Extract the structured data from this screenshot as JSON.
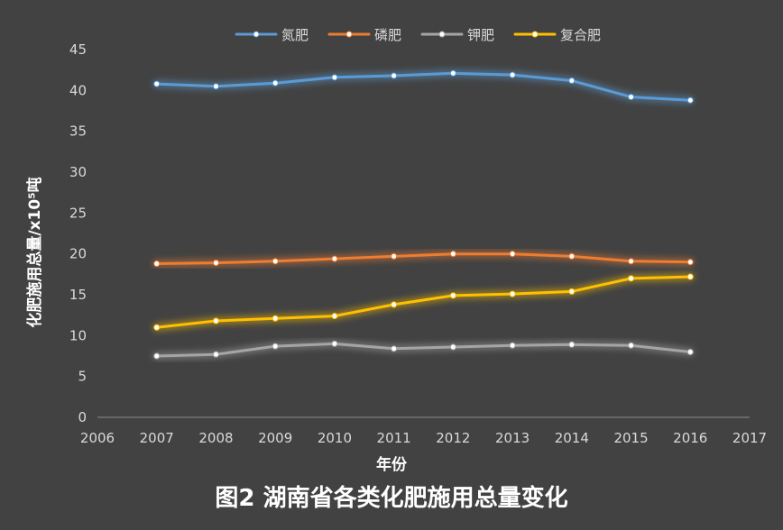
{
  "chart_data": {
    "type": "line",
    "title": "图2 湖南省各类化肥施用总量变化",
    "xlabel": "年份",
    "ylabel": "化肥施用总量/x10⁵吨",
    "xlim": [
      2006,
      2017
    ],
    "ylim": [
      0,
      45
    ],
    "x_ticks": [
      2006,
      2007,
      2008,
      2009,
      2010,
      2011,
      2012,
      2013,
      2014,
      2015,
      2016,
      2017
    ],
    "y_ticks": [
      0,
      5,
      10,
      15,
      20,
      25,
      30,
      35,
      40,
      45
    ],
    "grid": false,
    "legend_position": "top",
    "x": [
      2007,
      2008,
      2009,
      2010,
      2011,
      2012,
      2013,
      2014,
      2015,
      2016
    ],
    "series": [
      {
        "name": "氮肥",
        "color": "#5b9bd5",
        "values": [
          40.8,
          40.5,
          40.9,
          41.6,
          41.8,
          42.1,
          41.9,
          41.2,
          39.2,
          38.8
        ]
      },
      {
        "name": "磷肥",
        "color": "#ed7d31",
        "values": [
          18.8,
          18.9,
          19.1,
          19.4,
          19.7,
          20.0,
          20.0,
          19.7,
          19.1,
          19.0
        ]
      },
      {
        "name": "钾肥",
        "color": "#a5a5a5",
        "values": [
          7.5,
          7.7,
          8.7,
          9.0,
          8.4,
          8.6,
          8.8,
          8.9,
          8.8,
          8.0
        ]
      },
      {
        "name": "复合肥",
        "color": "#ffc000",
        "values": [
          11.0,
          11.8,
          12.1,
          12.4,
          13.8,
          14.9,
          15.1,
          15.4,
          17.0,
          17.2
        ]
      }
    ]
  }
}
